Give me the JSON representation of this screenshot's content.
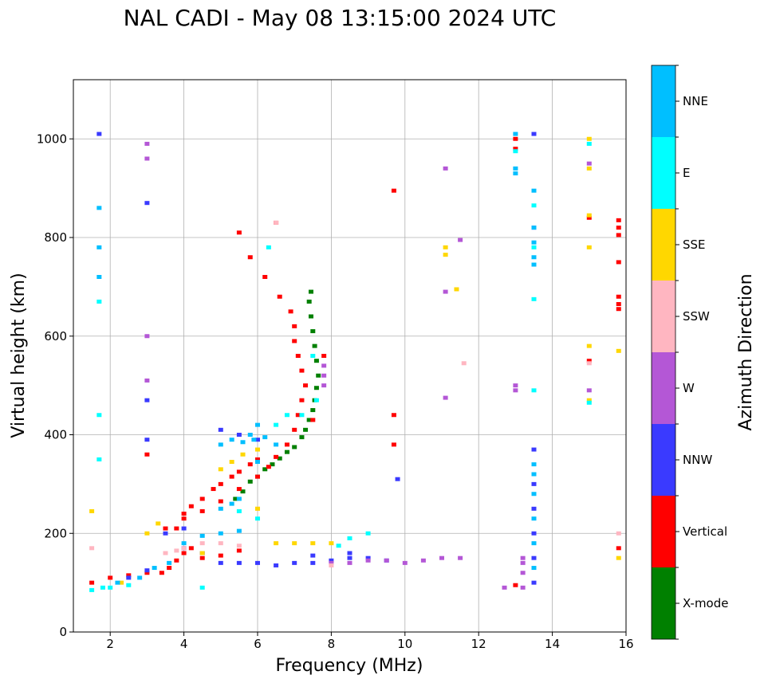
{
  "chart_data": {
    "type": "scatter",
    "title": "NAL CADI - May 08 13:15:00 2024 UTC",
    "xlabel": "Frequency (MHz)",
    "ylabel": "Virtual height (km)",
    "xlim": [
      1,
      16
    ],
    "ylim": [
      0,
      1120
    ],
    "xticks": [
      2,
      4,
      6,
      8,
      10,
      12,
      14,
      16
    ],
    "yticks": [
      0,
      200,
      400,
      600,
      800,
      1000
    ],
    "grid": true,
    "colorbar": {
      "title": "Azimuth Direction",
      "categories": [
        {
          "name": "X-mode",
          "color": "#008000"
        },
        {
          "name": "Vertical",
          "color": "#ff0000"
        },
        {
          "name": "NNW",
          "color": "#3a3aff"
        },
        {
          "name": "W",
          "color": "#b457d6"
        },
        {
          "name": "SSW",
          "color": "#ffb6c1"
        },
        {
          "name": "SSE",
          "color": "#ffd700"
        },
        {
          "name": "E",
          "color": "#00ffff"
        },
        {
          "name": "NNE",
          "color": "#00bfff"
        }
      ]
    },
    "series": [
      {
        "name": "X-mode",
        "points": [
          [
            5.8,
            305
          ],
          [
            6.0,
            315
          ],
          [
            6.2,
            330
          ],
          [
            6.4,
            340
          ],
          [
            6.6,
            352
          ],
          [
            6.8,
            365
          ],
          [
            7.0,
            375
          ],
          [
            7.2,
            395
          ],
          [
            7.3,
            410
          ],
          [
            7.4,
            430
          ],
          [
            7.5,
            450
          ],
          [
            7.55,
            470
          ],
          [
            7.6,
            495
          ],
          [
            7.65,
            520
          ],
          [
            7.6,
            550
          ],
          [
            7.55,
            580
          ],
          [
            7.5,
            610
          ],
          [
            7.45,
            640
          ],
          [
            7.4,
            670
          ],
          [
            7.45,
            690
          ],
          [
            5.6,
            285
          ],
          [
            5.4,
            270
          ]
        ]
      },
      {
        "name": "Vertical",
        "points": [
          [
            3.4,
            120
          ],
          [
            3.6,
            130
          ],
          [
            3.8,
            145
          ],
          [
            4.0,
            160
          ],
          [
            4.2,
            170
          ],
          [
            4.5,
            150
          ],
          [
            5.0,
            155
          ],
          [
            5.5,
            165
          ],
          [
            3.8,
            210
          ],
          [
            4.0,
            240
          ],
          [
            4.2,
            255
          ],
          [
            4.5,
            270
          ],
          [
            4.8,
            290
          ],
          [
            5.0,
            300
          ],
          [
            5.3,
            315
          ],
          [
            5.5,
            325
          ],
          [
            5.8,
            340
          ],
          [
            6.0,
            350
          ],
          [
            4.0,
            230
          ],
          [
            4.5,
            245
          ],
          [
            5.0,
            265
          ],
          [
            5.5,
            290
          ],
          [
            6.0,
            315
          ],
          [
            6.3,
            335
          ],
          [
            6.5,
            355
          ],
          [
            6.8,
            380
          ],
          [
            7.0,
            410
          ],
          [
            7.1,
            440
          ],
          [
            7.2,
            470
          ],
          [
            7.3,
            500
          ],
          [
            7.2,
            530
          ],
          [
            7.1,
            560
          ],
          [
            7.0,
            590
          ],
          [
            7.0,
            620
          ],
          [
            6.9,
            650
          ],
          [
            6.6,
            680
          ],
          [
            6.2,
            720
          ],
          [
            5.8,
            760
          ],
          [
            5.5,
            810
          ],
          [
            6.5,
            830
          ],
          [
            7.8,
            560
          ],
          [
            7.5,
            430
          ],
          [
            9.7,
            895
          ],
          [
            9.7,
            440
          ],
          [
            9.7,
            380
          ],
          [
            15.8,
            835
          ],
          [
            15.8,
            820
          ],
          [
            15.8,
            805
          ],
          [
            15.8,
            750
          ],
          [
            15.8,
            680
          ],
          [
            15.8,
            665
          ],
          [
            15.8,
            655
          ],
          [
            15.8,
            170
          ],
          [
            15.0,
            840
          ],
          [
            15.0,
            550
          ],
          [
            13.0,
            1000
          ],
          [
            13.0,
            980
          ],
          [
            13.0,
            95
          ],
          [
            3.0,
            360
          ],
          [
            2.0,
            110
          ],
          [
            2.5,
            115
          ],
          [
            3.0,
            120
          ],
          [
            1.5,
            100
          ],
          [
            3.5,
            210
          ]
        ]
      },
      {
        "name": "NNW",
        "points": [
          [
            5.0,
            140
          ],
          [
            5.5,
            140
          ],
          [
            6.0,
            140
          ],
          [
            6.5,
            135
          ],
          [
            7.0,
            140
          ],
          [
            7.5,
            140
          ],
          [
            8.0,
            145
          ],
          [
            8.5,
            150
          ],
          [
            9.0,
            150
          ],
          [
            9.5,
            145
          ],
          [
            8.5,
            160
          ],
          [
            7.5,
            155
          ],
          [
            3.5,
            200
          ],
          [
            4.0,
            210
          ],
          [
            5.0,
            410
          ],
          [
            5.5,
            400
          ],
          [
            6.0,
            390
          ],
          [
            1.7,
            1010
          ],
          [
            3.0,
            870
          ],
          [
            3.0,
            470
          ],
          [
            3.0,
            390
          ],
          [
            9.8,
            310
          ],
          [
            13.5,
            1010
          ],
          [
            13.5,
            820
          ],
          [
            13.5,
            370
          ],
          [
            13.5,
            300
          ],
          [
            13.5,
            250
          ],
          [
            13.5,
            200
          ],
          [
            13.5,
            150
          ],
          [
            13.5,
            100
          ],
          [
            4.0,
            170
          ],
          [
            4.5,
            160
          ],
          [
            2.5,
            110
          ],
          [
            3.0,
            125
          ]
        ]
      },
      {
        "name": "W",
        "points": [
          [
            8.0,
            140
          ],
          [
            8.5,
            140
          ],
          [
            9.0,
            145
          ],
          [
            9.5,
            145
          ],
          [
            10.0,
            140
          ],
          [
            10.5,
            145
          ],
          [
            11.0,
            150
          ],
          [
            7.8,
            520
          ],
          [
            7.8,
            540
          ],
          [
            7.8,
            500
          ],
          [
            11.1,
            690
          ],
          [
            11.1,
            940
          ],
          [
            11.1,
            475
          ],
          [
            13.2,
            150
          ],
          [
            13.2,
            120
          ],
          [
            13.2,
            90
          ],
          [
            13.2,
            140
          ],
          [
            13.0,
            500
          ],
          [
            13.0,
            490
          ],
          [
            12.7,
            90
          ],
          [
            15.0,
            950
          ],
          [
            15.0,
            490
          ],
          [
            3.0,
            990
          ],
          [
            3.0,
            960
          ],
          [
            3.0,
            600
          ],
          [
            3.0,
            510
          ],
          [
            11.5,
            795
          ],
          [
            11.5,
            150
          ]
        ]
      },
      {
        "name": "SSW",
        "points": [
          [
            3.5,
            160
          ],
          [
            3.8,
            165
          ],
          [
            4.0,
            170
          ],
          [
            1.5,
            170
          ],
          [
            4.5,
            180
          ],
          [
            5.0,
            180
          ],
          [
            5.5,
            175
          ],
          [
            6.0,
            250
          ],
          [
            6.5,
            830
          ],
          [
            11.6,
            545
          ],
          [
            15.8,
            200
          ],
          [
            15.0,
            545
          ],
          [
            8.0,
            135
          ]
        ]
      },
      {
        "name": "SSE",
        "points": [
          [
            3.0,
            200
          ],
          [
            3.3,
            220
          ],
          [
            5.0,
            330
          ],
          [
            5.3,
            345
          ],
          [
            5.6,
            360
          ],
          [
            6.0,
            370
          ],
          [
            6.5,
            180
          ],
          [
            7.0,
            180
          ],
          [
            7.5,
            180
          ],
          [
            8.0,
            180
          ],
          [
            4.5,
            160
          ],
          [
            15.0,
            1000
          ],
          [
            15.0,
            940
          ],
          [
            15.0,
            845
          ],
          [
            15.0,
            780
          ],
          [
            15.0,
            580
          ],
          [
            15.0,
            470
          ],
          [
            15.8,
            570
          ],
          [
            15.8,
            150
          ],
          [
            11.1,
            780
          ],
          [
            11.1,
            765
          ],
          [
            11.4,
            695
          ],
          [
            6.0,
            250
          ],
          [
            2.3,
            100
          ],
          [
            1.5,
            245
          ]
        ]
      },
      {
        "name": "E",
        "points": [
          [
            8.5,
            190
          ],
          [
            9.0,
            200
          ],
          [
            8.2,
            175
          ],
          [
            7.5,
            560
          ],
          [
            7.6,
            470
          ],
          [
            7.2,
            440
          ],
          [
            6.8,
            440
          ],
          [
            6.5,
            420
          ],
          [
            6.3,
            780
          ],
          [
            4.5,
            90
          ],
          [
            2.0,
            90
          ],
          [
            1.8,
            90
          ],
          [
            1.5,
            85
          ],
          [
            13.5,
            865
          ],
          [
            13.5,
            780
          ],
          [
            13.5,
            675
          ],
          [
            13.5,
            490
          ],
          [
            15.0,
            465
          ],
          [
            15.0,
            990
          ],
          [
            13.0,
            975
          ],
          [
            1.7,
            440
          ],
          [
            1.7,
            350
          ],
          [
            1.7,
            670
          ],
          [
            6.0,
            230
          ],
          [
            5.5,
            245
          ],
          [
            2.5,
            95
          ]
        ]
      },
      {
        "name": "NNE",
        "points": [
          [
            5.0,
            380
          ],
          [
            5.3,
            390
          ],
          [
            5.6,
            385
          ],
          [
            5.9,
            390
          ],
          [
            6.2,
            395
          ],
          [
            6.5,
            380
          ],
          [
            6.0,
            420
          ],
          [
            5.8,
            400
          ],
          [
            5.0,
            250
          ],
          [
            5.3,
            260
          ],
          [
            5.5,
            270
          ],
          [
            6.0,
            345
          ],
          [
            4.0,
            180
          ],
          [
            4.5,
            195
          ],
          [
            5.0,
            200
          ],
          [
            5.5,
            205
          ],
          [
            13.0,
            1010
          ],
          [
            13.0,
            940
          ],
          [
            13.0,
            930
          ],
          [
            13.5,
            895
          ],
          [
            13.5,
            820
          ],
          [
            13.5,
            790
          ],
          [
            13.5,
            760
          ],
          [
            13.5,
            745
          ],
          [
            13.5,
            340
          ],
          [
            13.5,
            320
          ],
          [
            13.5,
            280
          ],
          [
            13.5,
            230
          ],
          [
            13.5,
            180
          ],
          [
            13.5,
            130
          ],
          [
            1.7,
            860
          ],
          [
            1.7,
            780
          ],
          [
            1.7,
            720
          ],
          [
            2.8,
            110
          ],
          [
            3.2,
            130
          ],
          [
            3.6,
            140
          ],
          [
            2.2,
            100
          ]
        ]
      }
    ]
  }
}
